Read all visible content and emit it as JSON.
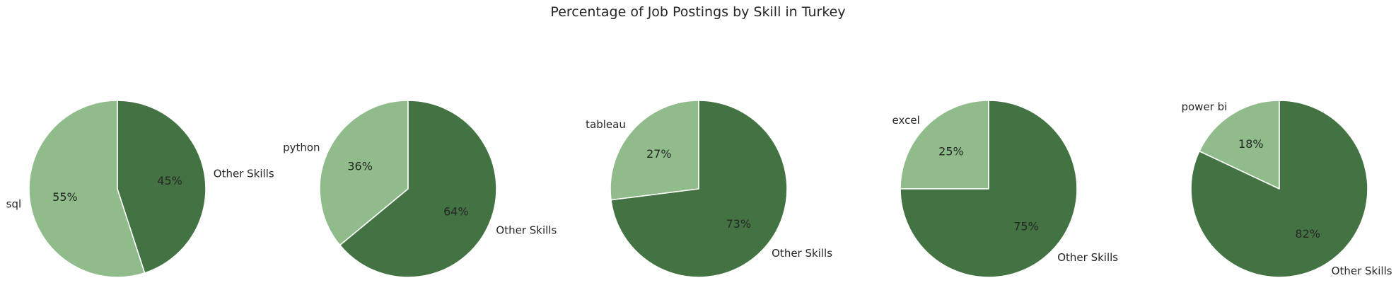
{
  "chart_data": {
    "type": "pie",
    "title": "Percentage of Job Postings by Skill in Turkey",
    "colors": {
      "skill": "#8fbc8a",
      "other": "#437342",
      "edge": "#ffffff"
    },
    "charts": [
      {
        "skill": "sql",
        "values": [
          55,
          45
        ],
        "labels": [
          "sql",
          "Other Skills"
        ],
        "pct_labels": [
          "55%",
          "45%"
        ]
      },
      {
        "skill": "python",
        "values": [
          36,
          64
        ],
        "labels": [
          "python",
          "Other Skills"
        ],
        "pct_labels": [
          "36%",
          "64%"
        ]
      },
      {
        "skill": "tableau",
        "values": [
          27,
          73
        ],
        "labels": [
          "tableau",
          "Other Skills"
        ],
        "pct_labels": [
          "27%",
          "73%"
        ]
      },
      {
        "skill": "excel",
        "values": [
          25,
          75
        ],
        "labels": [
          "excel",
          "Other Skills"
        ],
        "pct_labels": [
          "25%",
          "75%"
        ]
      },
      {
        "skill": "power bi",
        "values": [
          18,
          82
        ],
        "labels": [
          "power bi",
          "Other Skills"
        ],
        "pct_labels": [
          "18%",
          "82%"
        ]
      }
    ]
  }
}
